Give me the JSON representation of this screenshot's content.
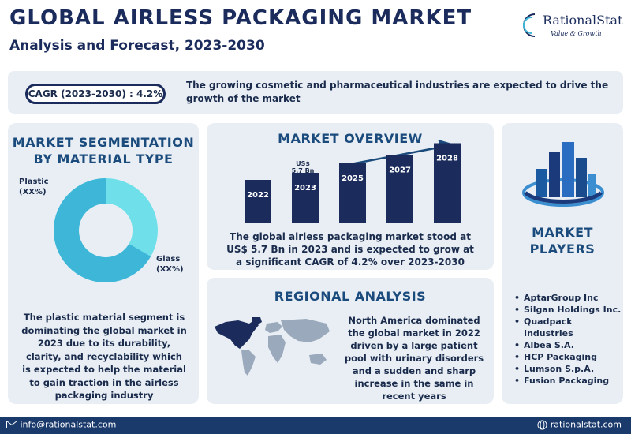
{
  "header": {
    "title": "GLOBAL AIRLESS PACKAGING MARKET",
    "subtitle": "Analysis and Forecast, 2023-2030"
  },
  "logo": {
    "name": "RationalStat",
    "tagline": "Value & Growth"
  },
  "summary": {
    "cagr_label": "CAGR (2023-2030) : 4.2%",
    "text": "The growing cosmetic and pharmaceutical industries are expected to drive the growth of the market"
  },
  "segmentation": {
    "title": "MARKET SEGMENTATION BY MATERIAL TYPE",
    "plastic_label": "Plastic",
    "plastic_value": "(XX%)",
    "glass_label": "Glass",
    "glass_value": "(XX%)",
    "description": "The plastic material segment is dominating the global market in 2023 due to its durability, clarity, and recyclability which is expected to help the material to gain traction in the airless packaging industry"
  },
  "overview": {
    "title": "MARKET OVERVIEW",
    "value_note_line1": "US$",
    "value_note_line2": "5.7 Bn",
    "description": "The global airless packaging market stood at US$ 5.7 Bn in 2023 and is expected to grow at a significant CAGR of 4.2% over 2023-2030"
  },
  "chart_data": {
    "type": "bar",
    "categories": [
      "2022",
      "2023",
      "2025",
      "2027",
      "2028"
    ],
    "relative_heights": [
      0.36,
      0.42,
      0.5,
      0.57,
      0.67
    ],
    "annotations": [
      {
        "category": "2023",
        "text": "US$ 5.7 Bn"
      }
    ],
    "bar_color": "#1a2b5c",
    "arrow": "upward trend"
  },
  "regional": {
    "title": "REGIONAL ANALYSIS",
    "description": "North America dominated the global market in 2022 driven by a large patient pool with urinary disorders and a sudden and sharp increase in the same in recent years"
  },
  "players": {
    "title_line1": "MARKET",
    "title_line2": "PLAYERS",
    "items": [
      "AptarGroup Inc",
      "Silgan Holdings Inc.",
      "Quadpack Industries",
      "Albea S.A.",
      "HCP Packaging",
      "Lumson S.p.A.",
      "Fusion Packaging"
    ]
  },
  "footer": {
    "email": "info@rationalstat.com",
    "website": "rationalstat.com"
  },
  "colors": {
    "navy": "#1a2b5c",
    "accent": "#1a4b7c",
    "panel": "#e8eef4",
    "donut_plastic": "#3eb6d8",
    "donut_glass": "#6fe0ea"
  },
  "icons": [
    "globe-icon",
    "envelope-icon",
    "city-buildings-icon",
    "world-map-icon",
    "trend-arrow-icon"
  ]
}
